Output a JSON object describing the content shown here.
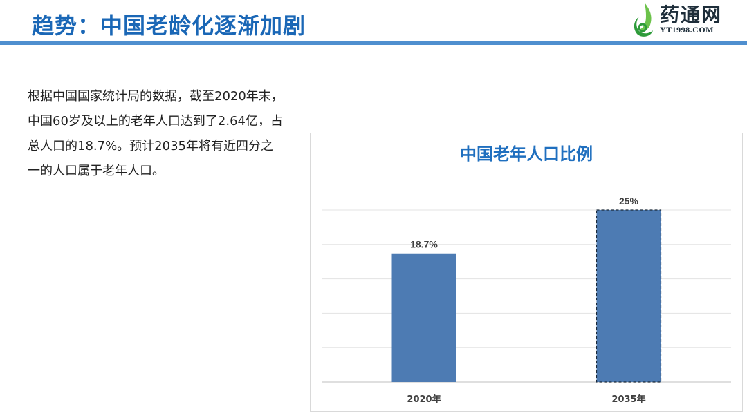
{
  "header": {
    "title": "趋势：中国老龄化逐渐加剧",
    "logo": {
      "name": "药通网",
      "domain": "YT1998.COM"
    }
  },
  "body_text": "根据中国国家统计局的数据，截至2020年末，中国60岁及以上的老年人口达到了2.64亿，占总人口的18.7%。预计2035年将有近四分之一的人口属于老年人口。",
  "colors": {
    "title": "#1a67b6",
    "bar": "#4d7bb3",
    "rule": "#4f8fcf",
    "chart_title": "#1f6fbf"
  },
  "chart_data": {
    "type": "bar",
    "title": "中国老年人口比例",
    "categories": [
      "2020年",
      "2035年"
    ],
    "values": [
      18.7,
      25
    ],
    "data_labels": [
      "18.7%",
      "25%"
    ],
    "ylim": [
      0,
      25
    ],
    "ygrid_step": 5,
    "grid": true,
    "legend": "none",
    "bar_styles": [
      "solid",
      "dashed-outline"
    ]
  }
}
